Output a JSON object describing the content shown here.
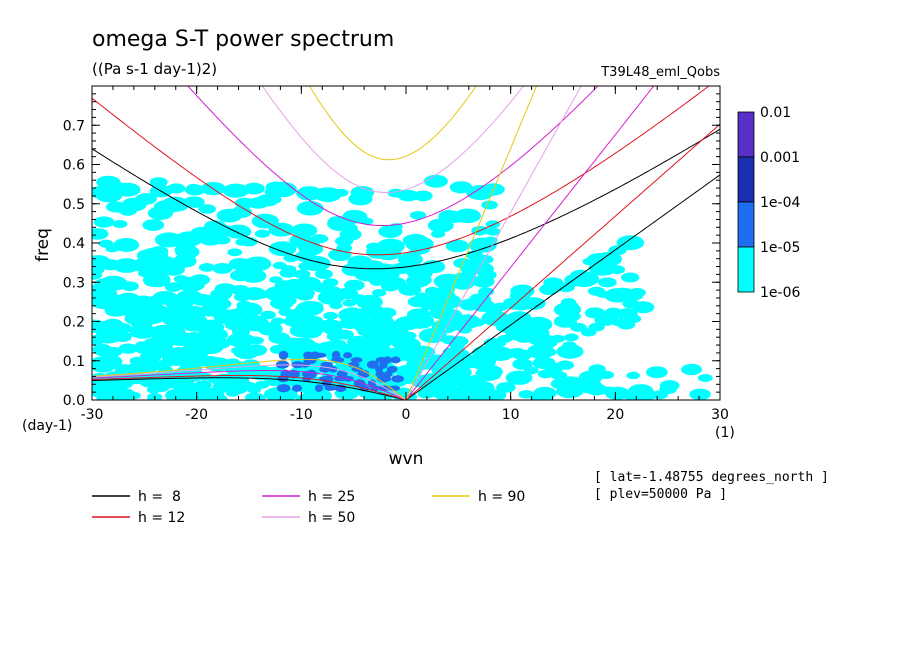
{
  "chart_data": {
    "type": "heatmap",
    "title": "omega S-T power spectrum",
    "subtitle": "((Pa s-1 day-1)2)",
    "run_label": "T39L48_eml_Qobs",
    "xlabel": "wvn",
    "ylabel": "freq",
    "x_unit": "(1)",
    "y_unit": "(day-1)",
    "xlim": [
      -30,
      30
    ],
    "ylim": [
      0,
      0.8
    ],
    "x_ticks": [
      "-30",
      "-20",
      "-10",
      "0",
      "10",
      "20",
      "30"
    ],
    "y_ticks": [
      "0.0",
      "0.1",
      "0.2",
      "0.3",
      "0.4",
      "0.5",
      "0.6",
      "0.7"
    ],
    "grid": false,
    "colorbar": {
      "labels": [
        "0.01",
        "0.001",
        "1e-04",
        "1e-05",
        "1e-06"
      ],
      "colors": [
        "#5a2fc8",
        "#1a2fb0",
        "#1f6ef0",
        "#00ffff"
      ],
      "position": "right"
    },
    "info_lines": [
      "[ lat=-1.48755 degrees_north ]",
      "[ plev=50000 Pa ]"
    ],
    "dispersion_curves": [
      {
        "name": "h =  8",
        "h": 8,
        "color": "#000000"
      },
      {
        "name": "h = 12",
        "h": 12,
        "color": "#e0141e"
      },
      {
        "name": "h = 25",
        "h": 25,
        "color": "#d21ed2"
      },
      {
        "name": "h = 50",
        "h": 50,
        "color": "#e6a0e6"
      },
      {
        "name": "h = 90",
        "h": 90,
        "color": "#e6c814"
      }
    ],
    "power_regions": [
      {
        "level": "1e-06",
        "region": "widespread over wvn -30..8, freq 0.0..0.5; along Kelvin band wvn 0..20, freq 0..0.3"
      },
      {
        "level": "1e-05",
        "region": "wvn -12..-2, freq 0.03..0.12"
      },
      {
        "level": "1e-04",
        "region": "not present"
      }
    ]
  }
}
